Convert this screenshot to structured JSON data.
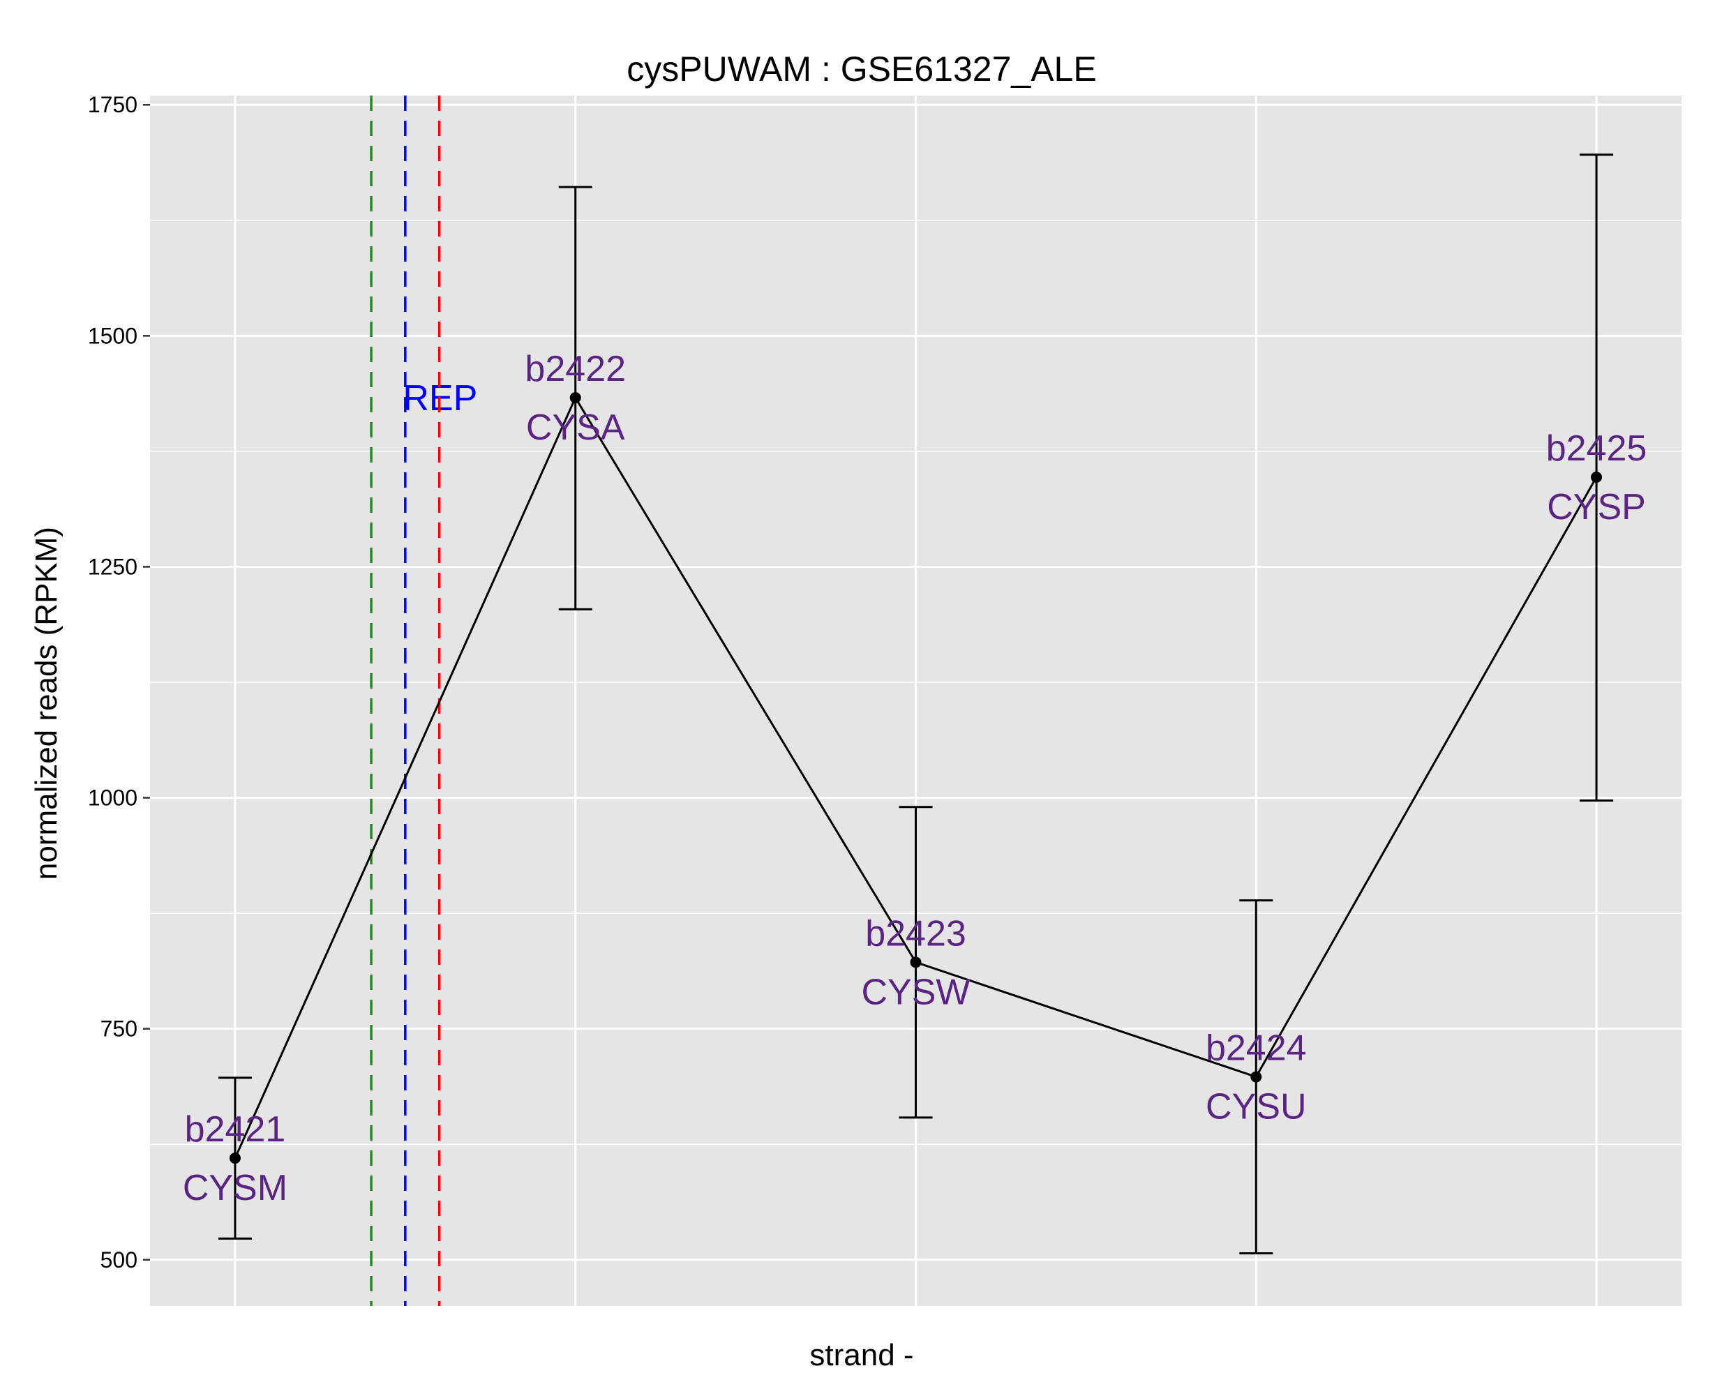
{
  "chart_data": {
    "type": "line",
    "title": "cysPUWAM : GSE61327_ALE",
    "xlabel": "strand -",
    "ylabel": "normalized reads (RPKM)",
    "ylim": [
      450,
      1760
    ],
    "xlim": [
      0.75,
      5.25
    ],
    "yticks": [
      500,
      750,
      1000,
      1250,
      1500,
      1750
    ],
    "ytick_labels": [
      "500",
      "750",
      "1000",
      "1250",
      "1500",
      "1750"
    ],
    "grid": true,
    "points": [
      {
        "x": 1,
        "y": 610,
        "err_low": 523,
        "err_high": 697,
        "id": "b2421",
        "name": "CYSM"
      },
      {
        "x": 2,
        "y": 1433,
        "err_low": 1204,
        "err_high": 1661,
        "id": "b2422",
        "name": "CYSA"
      },
      {
        "x": 3,
        "y": 822,
        "err_low": 654,
        "err_high": 990,
        "id": "b2423",
        "name": "CYSW"
      },
      {
        "x": 4,
        "y": 698,
        "err_low": 507,
        "err_high": 889,
        "id": "b2424",
        "name": "CYSU"
      },
      {
        "x": 5,
        "y": 1347,
        "err_low": 997,
        "err_high": 1696,
        "id": "b2425",
        "name": "CYSP"
      }
    ],
    "vlines": [
      {
        "x": 1.4,
        "color": "#228b22"
      },
      {
        "x": 1.5,
        "color": "#0000ff",
        "label": "REP"
      },
      {
        "x": 1.6,
        "color": "#ff0000"
      }
    ],
    "colors": {
      "panel_background": "#e5e5e5",
      "grid": "#ffffff",
      "line": "#000000",
      "gene_label": "#5b2483",
      "marker_label": "#0000ff"
    }
  }
}
